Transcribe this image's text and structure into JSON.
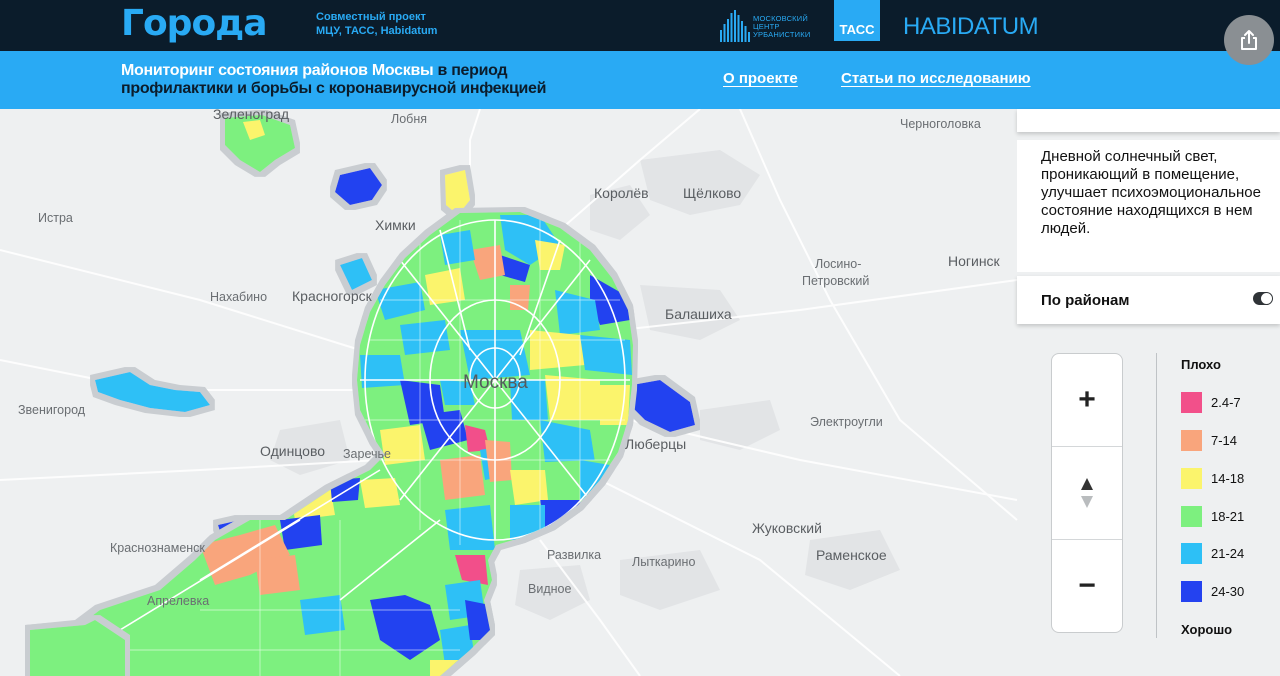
{
  "header": {
    "logo": "Города",
    "project_line1": "Совместный проект",
    "project_line2": "МЦУ, ТАСС, Habidatum",
    "mcu_line1": "МОСКОВСКИЙ",
    "mcu_line2": "ЦЕНТР",
    "mcu_line3": "УРБАНИСТИКИ",
    "tass": "ТАСС",
    "habidatum": "HABIDATUM"
  },
  "subheader": {
    "title_part1_line1": "Мониторинг состояния районов Москвы",
    "title_part2_line1": "в период",
    "title_line2": "профилактики и борьбы с коронавирусной инфекцией",
    "nav_about": "О проекте",
    "nav_articles": "Статьи по исследованию"
  },
  "panel": {
    "description": "Дневной солнечный свет, проникающий в помещение, улучшает психоэмоциональное состояние находящихся в нем людей.",
    "toggle_label": "По районам",
    "toggle_on": true
  },
  "zoom": {
    "plus": "+",
    "minus": "−"
  },
  "legend": {
    "top_label": "Плохо",
    "bottom_label": "Хорошо",
    "items": [
      {
        "label": "2.4-7",
        "color": "#f2508a"
      },
      {
        "label": "7-14",
        "color": "#f9a57c"
      },
      {
        "label": "14-18",
        "color": "#fbf46c"
      },
      {
        "label": "18-21",
        "color": "#7df07f"
      },
      {
        "label": "21-24",
        "color": "#2dc0f6"
      },
      {
        "label": "24-30",
        "color": "#2442f0"
      }
    ]
  },
  "map": {
    "cities": {
      "zelenograd": "Зеленоград",
      "lobnya": "Лобня",
      "chernogolovka": "Черноголовка",
      "korolev": "Королёв",
      "shchelkovo": "Щёлково",
      "istra": "Истра",
      "khimki": "Химки",
      "losino": "Лосино-",
      "petrovsky": "Петровский",
      "noginsk": "Ногинск",
      "nakhabino": "Нахабино",
      "krasnogorsk": "Красногорск",
      "balashikha": "Балашиха",
      "moskva": "Москва",
      "zvenigorod": "Звенигород",
      "elektrougli": "Электроугли",
      "odintsovo": "Одинцово",
      "zarechye": "Заречье",
      "lyubertsy": "Люберцы",
      "zhukovsky": "Жуковский",
      "krasnoznamensk": "Краснознаменск",
      "razvilka": "Развилка",
      "ramenskoe": "Раменское",
      "lytkarino": "Лыткарино",
      "vidnoe": "Видное",
      "aprelevka": "Апрелевка"
    }
  }
}
